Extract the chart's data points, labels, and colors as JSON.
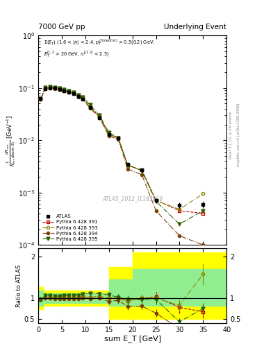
{
  "title_left": "7000 GeV pp",
  "title_right": "Underlying Event",
  "annotation": "ATLAS_2012_I1183818",
  "rivet_label": "Rivet 3.1.10, ≥ 2M events",
  "arxiv_label": "mcplots.cern.ch [arXiv:1306.3436]",
  "xlabel": "sum E_T [GeV]",
  "ylabel_main": "$\\frac{1}{N_\\mathrm{evt}}\\frac{dN_\\mathrm{evt}}{d\\mathrm{sum}\\ E_T}$ [GeV$^{-1}$]",
  "ylabel_ratio": "Ratio to ATLAS",
  "xlim": [
    0,
    40
  ],
  "ylim_main": [
    0.0001,
    1.0
  ],
  "x_atlas": [
    0.5,
    1.5,
    2.5,
    3.5,
    4.5,
    5.5,
    6.5,
    7.5,
    8.5,
    9.5,
    11.0,
    13.0,
    15.0,
    17.0,
    19.0,
    22.0,
    25.0,
    30.0,
    35.0
  ],
  "y_atlas": [
    0.062,
    0.097,
    0.1,
    0.098,
    0.093,
    0.088,
    0.083,
    0.078,
    0.068,
    0.06,
    0.042,
    0.027,
    0.013,
    0.011,
    0.0035,
    0.0027,
    0.0007,
    0.00058,
    0.0006
  ],
  "ye_atlas": [
    0.004,
    0.004,
    0.004,
    0.004,
    0.004,
    0.003,
    0.003,
    0.003,
    0.003,
    0.003,
    0.002,
    0.001,
    0.001,
    0.0008,
    0.0003,
    0.0002,
    8e-05,
    7e-05,
    9e-05
  ],
  "y_p391": [
    0.06,
    0.099,
    0.102,
    0.099,
    0.094,
    0.089,
    0.084,
    0.079,
    0.069,
    0.062,
    0.043,
    0.028,
    0.013,
    0.011,
    0.0033,
    0.0027,
    0.00072,
    0.00045,
    0.0004
  ],
  "y_p393": [
    0.06,
    0.099,
    0.102,
    0.099,
    0.094,
    0.089,
    0.084,
    0.079,
    0.069,
    0.062,
    0.043,
    0.028,
    0.013,
    0.0108,
    0.0033,
    0.0027,
    0.0007,
    0.00048,
    0.00095
  ],
  "y_p394": [
    0.06,
    0.097,
    0.1,
    0.097,
    0.092,
    0.087,
    0.082,
    0.077,
    0.067,
    0.06,
    0.041,
    0.027,
    0.012,
    0.0105,
    0.0028,
    0.0022,
    0.00045,
    0.00015,
    0.0001
  ],
  "y_p395": [
    0.06,
    0.103,
    0.106,
    0.103,
    0.098,
    0.093,
    0.088,
    0.083,
    0.073,
    0.066,
    0.047,
    0.03,
    0.014,
    0.0112,
    0.0034,
    0.0026,
    0.00068,
    0.00025,
    0.00045
  ],
  "color_atlas": "#000000",
  "color_p391": "#c00000",
  "color_p393": "#888800",
  "color_p394": "#7a4000",
  "color_p395": "#2a6000",
  "ratio_x": [
    0.5,
    1.5,
    2.5,
    3.5,
    4.5,
    5.5,
    6.5,
    7.5,
    8.5,
    9.5,
    11.0,
    13.0,
    15.0,
    17.0,
    19.0,
    22.0,
    25.0,
    30.0,
    35.0
  ],
  "ratio_y_p391": [
    0.97,
    1.02,
    1.02,
    1.01,
    1.01,
    1.01,
    1.01,
    1.01,
    1.01,
    1.03,
    1.02,
    1.04,
    1.0,
    1.0,
    0.94,
    1.0,
    1.03,
    0.78,
    0.67
  ],
  "ratio_y_p393": [
    0.97,
    1.02,
    1.02,
    1.01,
    1.01,
    1.01,
    1.01,
    1.01,
    1.01,
    1.03,
    1.02,
    1.04,
    1.0,
    0.98,
    0.94,
    1.0,
    1.0,
    0.83,
    1.58
  ],
  "ratio_y_p394": [
    0.97,
    1.0,
    1.0,
    0.99,
    0.99,
    0.99,
    0.99,
    0.99,
    0.99,
    1.0,
    0.98,
    1.0,
    0.92,
    0.95,
    0.8,
    0.81,
    0.64,
    0.26,
    0.17
  ],
  "ratio_y_p395": [
    0.97,
    1.06,
    1.06,
    1.05,
    1.05,
    1.06,
    1.06,
    1.06,
    1.07,
    1.1,
    1.12,
    1.11,
    1.08,
    1.02,
    0.97,
    0.96,
    0.97,
    0.43,
    0.75
  ],
  "ratio_ye_p391": [
    0.06,
    0.04,
    0.04,
    0.04,
    0.04,
    0.03,
    0.03,
    0.03,
    0.04,
    0.04,
    0.04,
    0.04,
    0.07,
    0.07,
    0.09,
    0.08,
    0.12,
    0.14,
    0.15
  ],
  "ratio_ye_p393": [
    0.06,
    0.04,
    0.04,
    0.04,
    0.04,
    0.03,
    0.03,
    0.03,
    0.04,
    0.04,
    0.04,
    0.04,
    0.07,
    0.07,
    0.09,
    0.08,
    0.12,
    0.14,
    0.26
  ],
  "ratio_ye_p394": [
    0.06,
    0.04,
    0.04,
    0.04,
    0.04,
    0.03,
    0.03,
    0.03,
    0.04,
    0.04,
    0.04,
    0.04,
    0.07,
    0.08,
    0.09,
    0.08,
    0.09,
    0.05,
    0.03
  ],
  "ratio_ye_p395": [
    0.06,
    0.04,
    0.04,
    0.04,
    0.04,
    0.03,
    0.03,
    0.03,
    0.04,
    0.05,
    0.04,
    0.04,
    0.08,
    0.08,
    0.09,
    0.08,
    0.12,
    0.08,
    0.13
  ],
  "band_x_edges": [
    0,
    1,
    2,
    4,
    7,
    10,
    15,
    20,
    40
  ],
  "band_yellow_lo": [
    0.73,
    0.82,
    0.82,
    0.82,
    0.82,
    0.82,
    0.5,
    0.5
  ],
  "band_yellow_hi": [
    1.27,
    1.18,
    1.18,
    1.18,
    1.18,
    1.18,
    1.75,
    2.1
  ],
  "band_green_lo": [
    0.82,
    0.88,
    0.88,
    0.88,
    0.88,
    0.88,
    0.82,
    0.82
  ],
  "band_green_hi": [
    1.18,
    1.12,
    1.12,
    1.12,
    1.12,
    1.12,
    1.45,
    1.7
  ]
}
